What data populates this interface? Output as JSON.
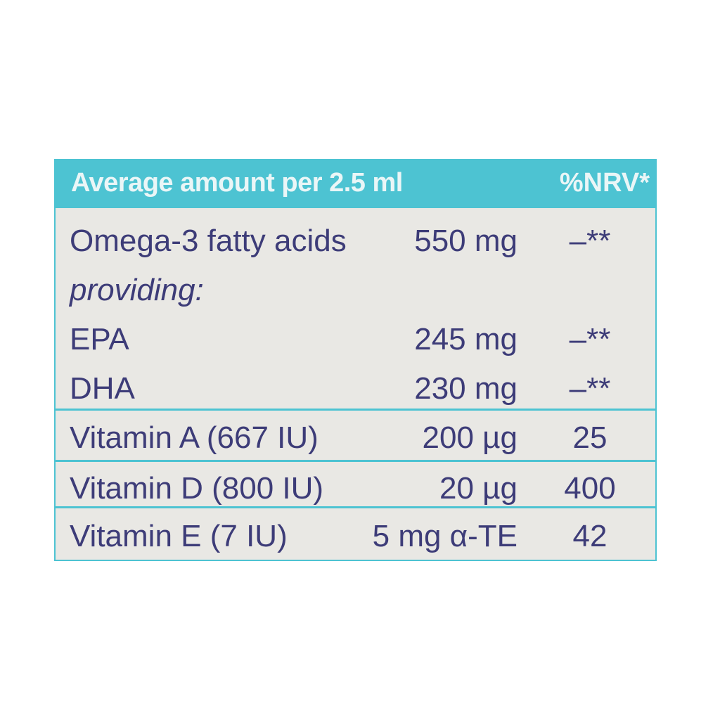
{
  "header": {
    "left": "Average amount per 2.5 ml",
    "right": "%NRV*"
  },
  "rows": [
    {
      "name": "Omega-3 fatty acids",
      "amount": "550 mg",
      "nrv": "–**"
    },
    {
      "name": "providing:",
      "amount": "",
      "nrv": ""
    },
    {
      "name": "EPA",
      "amount": "245 mg",
      "nrv": "–**"
    },
    {
      "name": "DHA",
      "amount": "230 mg",
      "nrv": "–**"
    },
    {
      "name": "Vitamin A (667 IU)",
      "amount": "200 µg",
      "nrv": "25"
    },
    {
      "name": "Vitamin D (800 IU)",
      "amount": "20 µg",
      "nrv": "400"
    },
    {
      "name": "Vitamin E (7 IU)",
      "amount": "5 mg α-TE",
      "nrv": "42"
    }
  ],
  "colors": {
    "accent": "#4dc3d2",
    "text": "#3d3c78",
    "background": "#e9e8e4"
  }
}
